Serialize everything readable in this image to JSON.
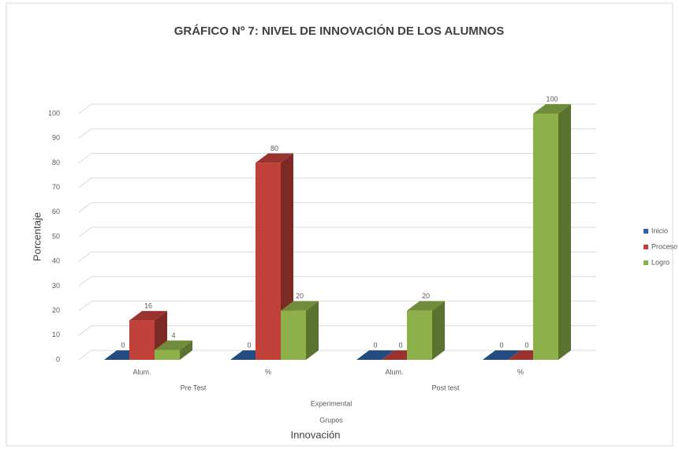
{
  "chart_data": {
    "type": "bar3d",
    "title": "GRÁFICO Nº 7: NIVEL DE INNOVACIÓN DE LOS ALUMNOS",
    "y_label": "Porcentaje",
    "x_label": "Innovación",
    "categories": [
      "Alum.",
      "%",
      "Alum.",
      "%"
    ],
    "groups": [
      "Pre Test",
      "Post test"
    ],
    "supergroup": "Experimental",
    "level_title": "Grupos",
    "series": [
      {
        "name": "Inicio",
        "color": "#2e5fa1",
        "values": [
          0,
          0,
          0,
          0
        ]
      },
      {
        "name": "Proceso",
        "color": "#c0403a",
        "values": [
          16,
          80,
          0,
          0
        ]
      },
      {
        "name": "Logro",
        "color": "#8db04a",
        "values": [
          4,
          20,
          20,
          100
        ]
      }
    ],
    "ylim": [
      0,
      100
    ],
    "yticks": [
      0,
      10,
      20,
      30,
      40,
      50,
      60,
      70,
      80,
      90,
      100
    ],
    "grid": true,
    "legend": "right"
  }
}
